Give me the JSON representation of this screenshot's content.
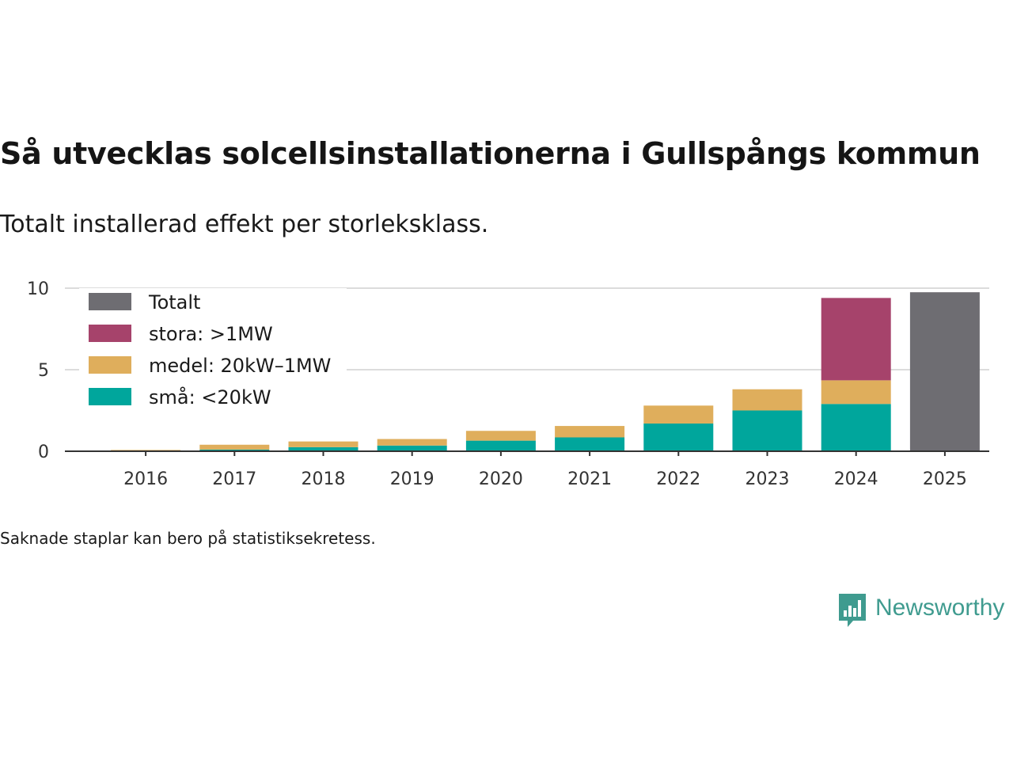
{
  "title": "Så utvecklas solcellsinstallationerna i Gullspångs kommun",
  "subtitle": "Totalt installerad effekt per storleksklass.",
  "footnote": "Saknade staplar kan bero på statistiksekretess.",
  "brand": {
    "name": "Newsworthy",
    "icon": "newsworthy-bar-chart-icon",
    "color": "#3f9b8f"
  },
  "chart_data": {
    "type": "bar",
    "stacked": true,
    "categories": [
      "2016",
      "2017",
      "2018",
      "2019",
      "2020",
      "2021",
      "2022",
      "2023",
      "2024",
      "2025"
    ],
    "series": [
      {
        "name": "små: <20kW",
        "color": "#00a69c",
        "values": [
          0.03,
          0.1,
          0.25,
          0.35,
          0.65,
          0.85,
          1.7,
          2.5,
          2.9,
          0
        ]
      },
      {
        "name": "medel: 20kW–1MW",
        "color": "#dfae5c",
        "values": [
          0.05,
          0.3,
          0.35,
          0.4,
          0.6,
          0.7,
          1.1,
          1.3,
          1.45,
          0
        ]
      },
      {
        "name": "stora: >1MW",
        "color": "#a6436b",
        "values": [
          0,
          0,
          0,
          0,
          0,
          0,
          0,
          0,
          5.05,
          0
        ]
      },
      {
        "name": "Totalt",
        "color": "#6e6d72",
        "values": [
          0,
          0,
          0,
          0,
          0,
          0,
          0,
          0,
          0,
          9.75
        ]
      }
    ],
    "legend_order": [
      "Totalt",
      "stora: >1MW",
      "medel: 20kW–1MW",
      "små: <20kW"
    ],
    "legend_position": "top-left",
    "y_ticks": [
      0,
      5,
      10
    ],
    "ylim": [
      0,
      10.5
    ],
    "grid": true,
    "xlabel": "",
    "ylabel": ""
  }
}
